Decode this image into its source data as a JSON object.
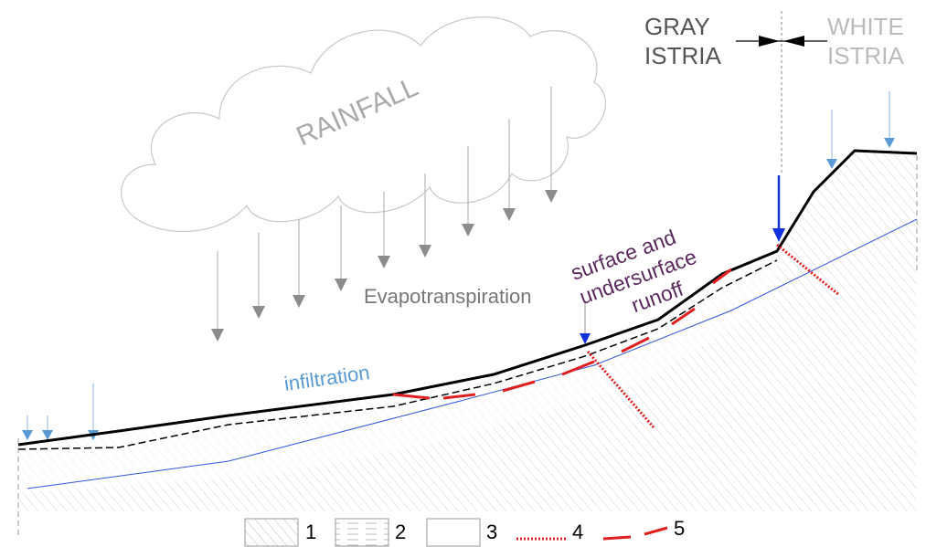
{
  "labels": {
    "gray": [
      "GRAY",
      "ISTRIA"
    ],
    "white": [
      "WHITE",
      "ISTRIA"
    ],
    "rainfall": "RAINFALL",
    "evapotranspiration": "Evapotranspiration",
    "infiltration": "infiltration",
    "runoff": [
      "surface and",
      "undersurface",
      "runoff"
    ]
  },
  "legend": [
    "1",
    "2",
    "3",
    "4",
    "5"
  ]
}
